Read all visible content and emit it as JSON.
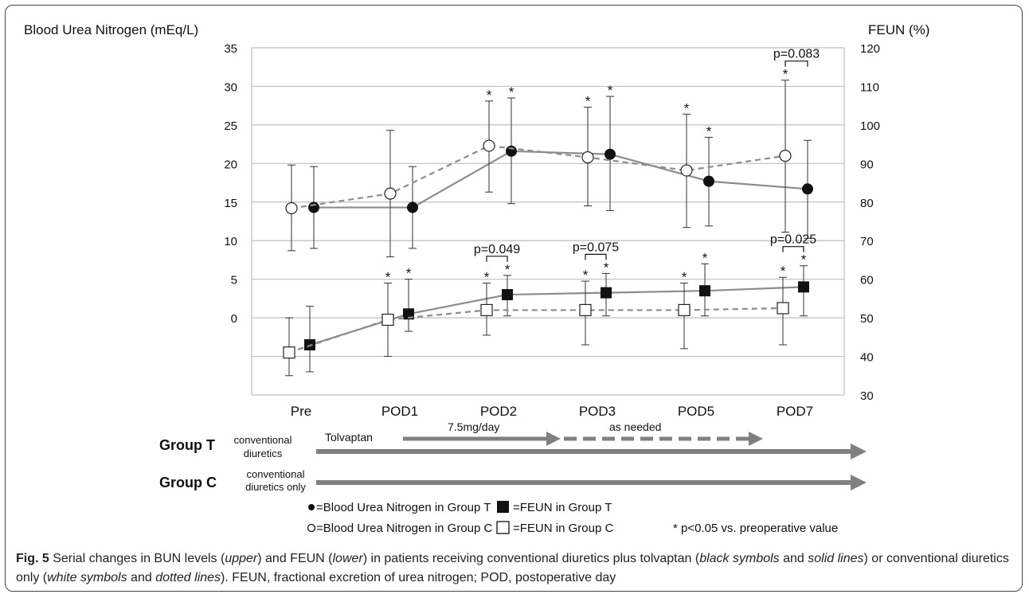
{
  "chart_data": {
    "type": "line",
    "categories": [
      "Pre",
      "POD1",
      "POD2",
      "POD3",
      "POD5",
      "POD7"
    ],
    "y_left": {
      "label": "Blood Urea Nitrogen (mEq/L)",
      "ticks": [
        0,
        5,
        10,
        15,
        20,
        25,
        30,
        35
      ]
    },
    "y_right": {
      "label": "FEUN (%)",
      "range": [
        30,
        120
      ],
      "ticks": [
        30,
        40,
        50,
        60,
        70,
        80,
        90,
        100,
        110,
        120
      ]
    },
    "grid": true,
    "series": [
      {
        "name": "Blood Urea Nitrogen in Group T",
        "axis": "left",
        "marker": "filled-circle",
        "line": "solid",
        "values": [
          14.3,
          14.3,
          21.6,
          21.2,
          17.7,
          16.7
        ],
        "err_low": [
          9.0,
          9.0,
          14.8,
          13.9,
          11.9,
          10.3
        ],
        "err_high": [
          19.6,
          19.6,
          28.5,
          28.7,
          23.4,
          23.0
        ],
        "sig": [
          false,
          false,
          true,
          true,
          true,
          false
        ]
      },
      {
        "name": "Blood Urea Nitrogen in Group C",
        "axis": "left",
        "marker": "open-circle",
        "line": "dashed",
        "values": [
          14.2,
          16.1,
          22.3,
          20.8,
          19.1,
          21.0
        ],
        "err_low": [
          8.7,
          7.9,
          16.3,
          14.5,
          11.7,
          11.1
        ],
        "err_high": [
          19.8,
          24.3,
          28.1,
          27.3,
          26.4,
          30.8
        ],
        "sig": [
          false,
          false,
          true,
          true,
          true,
          true
        ]
      },
      {
        "name": "FEUN in Group T",
        "axis": "right",
        "marker": "filled-square",
        "line": "solid",
        "values": [
          43,
          51,
          56,
          56.5,
          57,
          58
        ],
        "err_low": [
          36,
          46.5,
          50.5,
          50.5,
          50.5,
          50.5
        ],
        "err_high": [
          53,
          60,
          61,
          61.5,
          64,
          63.5
        ],
        "sig": [
          false,
          true,
          true,
          true,
          true,
          true
        ]
      },
      {
        "name": "FEUN in Group C",
        "axis": "right",
        "marker": "open-square",
        "line": "dashed",
        "values": [
          41,
          49.5,
          52,
          52,
          52,
          52.5
        ],
        "err_low": [
          35,
          40,
          45.5,
          43,
          42,
          43
        ],
        "err_high": [
          50,
          59,
          59,
          59.5,
          59,
          60.5
        ],
        "sig": [
          false,
          true,
          true,
          true,
          true,
          true
        ]
      }
    ],
    "annotations": [
      {
        "text": "p=0.083",
        "category": "POD7",
        "group": "BUN"
      },
      {
        "text": "p=0.049",
        "category": "POD2",
        "group": "FEUN"
      },
      {
        "text": "p=0.075",
        "category": "POD3",
        "group": "FEUN"
      },
      {
        "text": "p=0.025",
        "category": "POD7",
        "group": "FEUN"
      }
    ],
    "sig_marker": "*"
  },
  "timeline": {
    "group_t": {
      "label": "Group T",
      "note_line1": "conventional",
      "note_line2": "diuretics",
      "drug": "Tolvaptan",
      "dose": "7.5mg/day",
      "prn": "as needed"
    },
    "group_c": {
      "label": "Group C",
      "note_line1": "conventional",
      "note_line2": "diuretics only"
    }
  },
  "legend": {
    "bun_t": "=Blood Urea Nitrogen in Group T",
    "feun_t": "=FEUN in Group T",
    "bun_c": "=Blood Urea Nitrogen in Group C",
    "feun_c": "=FEUN in Group C",
    "sig_note": "* p<0.05 vs. preoperative value"
  },
  "caption": {
    "fig": "Fig. 5",
    "t1": " Serial changes in BUN levels (",
    "i1": "upper",
    "t2": ") and FEUN (",
    "i2": "lower",
    "t3": ") in patients receiving conventional diuretics plus tolvaptan (",
    "i3": "black symbols",
    "t4": " and ",
    "i4": "solid lines",
    "t5": ") or conventional diuretics only (",
    "i5": "white symbols",
    "t6": " and ",
    "i6": "dotted lines",
    "t7": "). FEUN, fractional excretion of urea nitrogen; POD, postoperative day"
  },
  "colors": {
    "line": "#8c8c8c",
    "grid": "#bfbfbf",
    "arrow": "#808080",
    "text": "#111111"
  }
}
